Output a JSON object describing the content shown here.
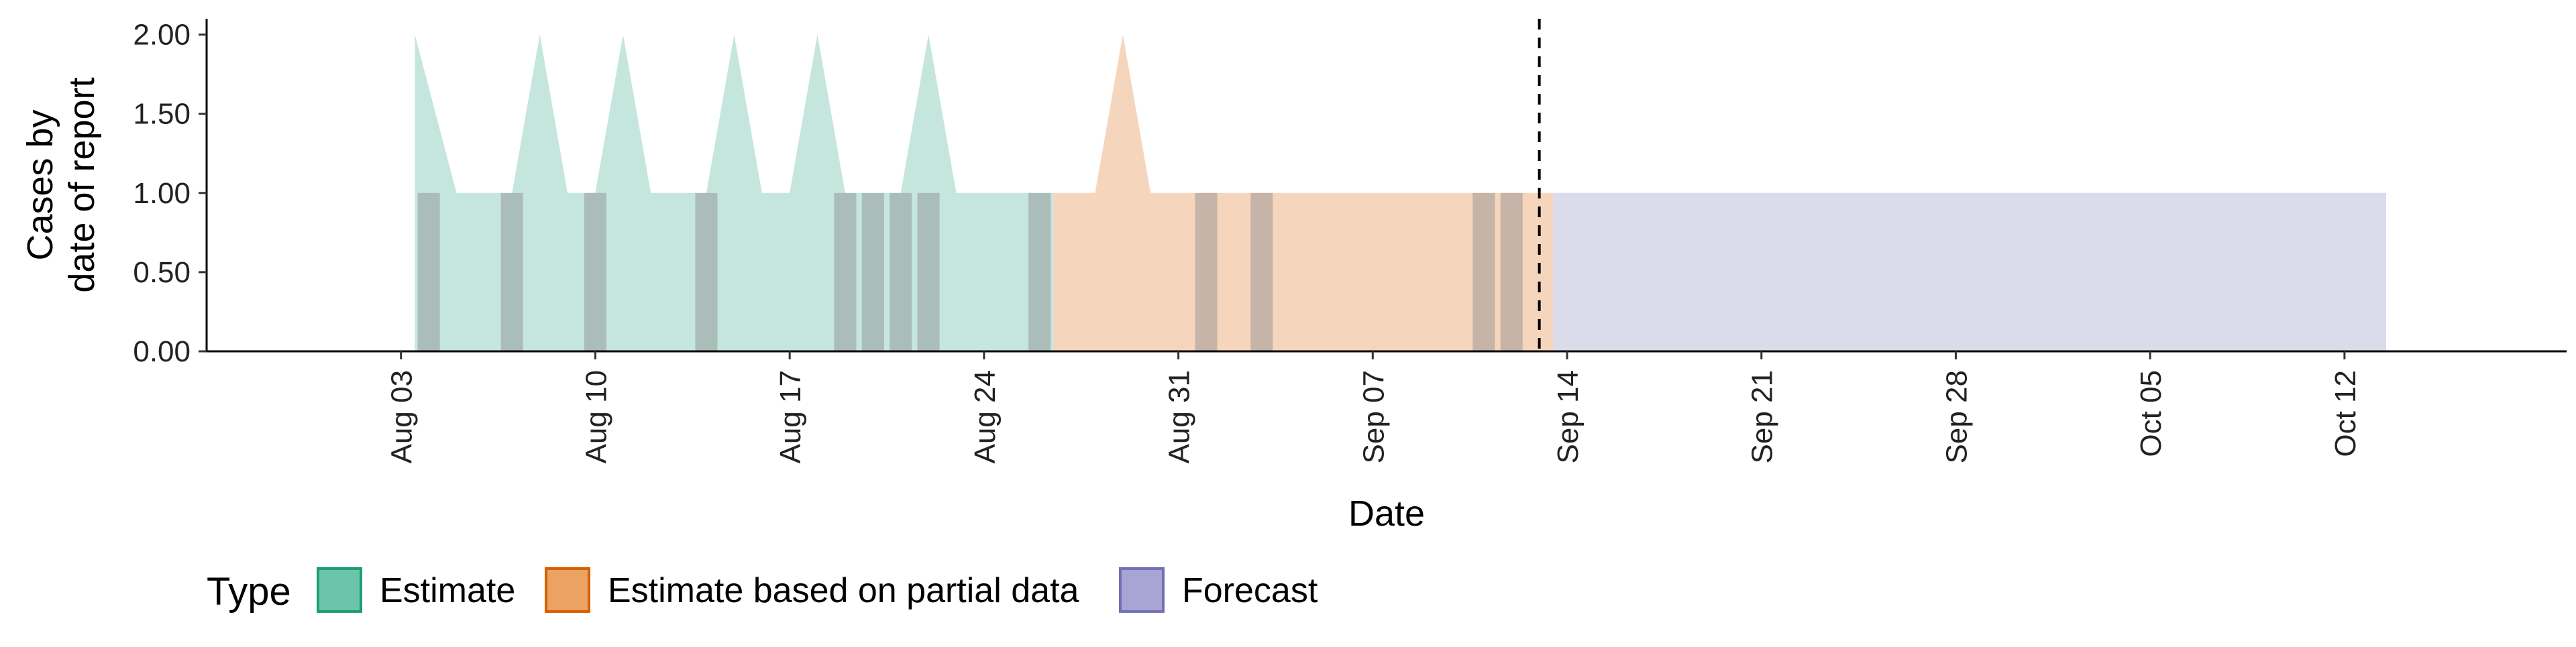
{
  "chart_data": {
    "type": "area",
    "title": "",
    "xlabel": "Date",
    "ylabel": [
      "Cases by",
      "date of report"
    ],
    "x_axis": {
      "type": "date",
      "range": [
        "2025-07-27",
        "2025-10-20"
      ],
      "ticks": [
        "2025-08-03",
        "2025-08-10",
        "2025-08-17",
        "2025-08-24",
        "2025-08-31",
        "2025-09-07",
        "2025-09-14",
        "2025-09-21",
        "2025-09-28",
        "2025-10-05",
        "2025-10-12"
      ],
      "tick_labels": [
        "Aug 03",
        "Aug 10",
        "Aug 17",
        "Aug 24",
        "Aug 31",
        "Sep 07",
        "Sep 14",
        "Sep 21",
        "Sep 28",
        "Oct 05",
        "Oct 12"
      ],
      "tick_label_rotation": -90
    },
    "y_axis": {
      "range": [
        0,
        2.1
      ],
      "ticks": [
        0,
        0.5,
        1,
        1.5,
        2
      ],
      "tick_labels": [
        "0.00",
        "0.50",
        "1.00",
        "1.50",
        "2.00"
      ]
    },
    "grid": false,
    "legend": {
      "title": "Type",
      "position": "bottom-left",
      "entries": [
        {
          "label": "Estimate",
          "fill": "#6cc5a8",
          "stroke": "#1b9e77"
        },
        {
          "label": "Estimate based on partial data",
          "fill": "#eba263",
          "stroke": "#d95f02"
        },
        {
          "label": "Forecast",
          "fill": "#a8a4d4",
          "stroke": "#7570b3"
        }
      ]
    },
    "series": [
      {
        "name": "Estimate",
        "color": "#1b9e77",
        "fill": "#c5e6dd",
        "x": [
          "2025-08-04",
          "2025-08-05",
          "2025-08-06",
          "2025-08-07",
          "2025-08-08",
          "2025-08-09",
          "2025-08-10",
          "2025-08-11",
          "2025-08-12",
          "2025-08-13",
          "2025-08-14",
          "2025-08-15",
          "2025-08-16",
          "2025-08-17",
          "2025-08-18",
          "2025-08-19",
          "2025-08-20",
          "2025-08-21",
          "2025-08-22",
          "2025-08-23",
          "2025-08-24",
          "2025-08-25",
          "2025-08-26"
        ],
        "upper": [
          2,
          1,
          1,
          1,
          2,
          1,
          1,
          2,
          1,
          1,
          1,
          2,
          1,
          1,
          2,
          1,
          1,
          1,
          2,
          1,
          1,
          1,
          1
        ],
        "lower": [
          0,
          0,
          0,
          0,
          0,
          0,
          0,
          0,
          0,
          0,
          0,
          0,
          0,
          0,
          0,
          0,
          0,
          0,
          0,
          0,
          0,
          0,
          0
        ]
      },
      {
        "name": "Estimate based on partial data",
        "color": "#d95f02",
        "fill": "#f5d6bd",
        "x": [
          "2025-08-27",
          "2025-08-28",
          "2025-08-29",
          "2025-08-30",
          "2025-08-31",
          "2025-09-01",
          "2025-09-02",
          "2025-09-03",
          "2025-09-04",
          "2025-09-05",
          "2025-09-06",
          "2025-09-07",
          "2025-09-08",
          "2025-09-09",
          "2025-09-10",
          "2025-09-11",
          "2025-09-12",
          "2025-09-13"
        ],
        "upper": [
          1,
          1,
          2,
          1,
          1,
          1,
          1,
          1,
          1,
          1,
          1,
          1,
          1,
          1,
          1,
          1,
          1,
          1
        ],
        "lower": [
          0,
          0,
          0,
          0,
          0,
          0,
          0,
          0,
          0,
          0,
          0,
          0,
          0,
          0,
          0,
          0,
          0,
          0
        ]
      },
      {
        "name": "Forecast",
        "color": "#7570b3",
        "fill": "#dcdbeb",
        "x": [
          "2025-09-14",
          "2025-10-13"
        ],
        "upper": [
          1,
          1
        ],
        "lower": [
          0,
          0
        ]
      }
    ],
    "reported_cases": {
      "color": "#8c8c8c",
      "height": 1,
      "dates": [
        "2025-08-04",
        "2025-08-07",
        "2025-08-10",
        "2025-08-14",
        "2025-08-19",
        "2025-08-20",
        "2025-08-21",
        "2025-08-22",
        "2025-08-26",
        "2025-09-01",
        "2025-09-03",
        "2025-09-11",
        "2025-09-12"
      ]
    },
    "vline": {
      "x": "2025-09-13",
      "style": "dashed",
      "color": "#000000"
    }
  }
}
